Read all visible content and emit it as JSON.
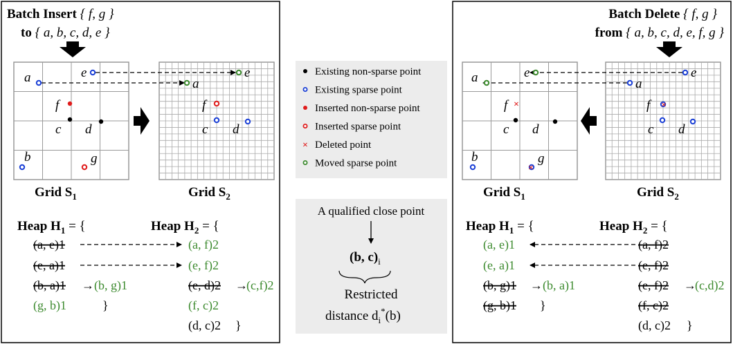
{
  "left_panel": {
    "title_bold": "Batch Insert",
    "title_set": "{ f, g }",
    "subtitle_bold": "to",
    "subtitle_set": "{ a, b, c, d, e }",
    "grid1_label": "Grid S",
    "grid1_sub": "1",
    "grid2_label": "Grid S",
    "grid2_sub": "2",
    "heap1_open": "Heap H",
    "heap1_sub": "1",
    "heap1_eq": "= {",
    "heap2_open": "Heap H",
    "heap2_sub": "2",
    "heap2_eq": "= {",
    "heap1_entries": [
      "(a, e)1",
      "(e, a)1",
      "(b, a)1",
      "(b, g)1",
      "(g, b)1",
      "}"
    ],
    "heap2_entries": [
      "(a, f)2",
      "(e, f)2",
      "(e, d)2",
      "(c,f)2",
      "(f, c)2",
      "(d, c)2",
      "}"
    ],
    "point_labels": [
      "a",
      "e",
      "f",
      "c",
      "d",
      "b",
      "g"
    ]
  },
  "right_panel": {
    "title_bold": "Batch Delete",
    "title_set": "{ f, g }",
    "subtitle_bold": "from",
    "subtitle_set": "{ a, b, c, d, e, f, g }",
    "grid1_label": "Grid S",
    "grid1_sub": "1",
    "grid2_label": "Grid S",
    "grid2_sub": "2",
    "heap1_open": "Heap H",
    "heap1_sub": "1",
    "heap1_eq": "= {",
    "heap2_open": "Heap H",
    "heap2_sub": "2",
    "heap2_eq": "= {",
    "heap1_entries": [
      "(a, e)1",
      "(e, a)1",
      "(b, g)1",
      "(b, a)1",
      "(g, b)1",
      "}"
    ],
    "heap2_entries": [
      "(a, f)2",
      "(e, f)2",
      "(e, f)2",
      "(c,d)2",
      "(f, c)2",
      "(d, c)2",
      "}"
    ]
  },
  "legend": {
    "items": [
      {
        "label": "Existing non-sparse point",
        "marker": "filled-dot",
        "color": "#000000"
      },
      {
        "label": "Existing sparse point",
        "marker": "ring",
        "color": "#1a3fd6"
      },
      {
        "label": "Inserted non-sparse point",
        "marker": "filled-dot",
        "color": "#e01b1b"
      },
      {
        "label": "Inserted sparse point",
        "marker": "ring",
        "color": "#e01b1b"
      },
      {
        "label": "Deleted point",
        "marker": "cross",
        "color": "#e01b1b"
      },
      {
        "label": "Moved sparse point",
        "marker": "ring",
        "color": "#3c8a2e"
      }
    ]
  },
  "explain": {
    "caption": "A qualified close point",
    "pair": "(b, c)",
    "pair_sub": "i",
    "restricted": "Restricted",
    "distance": "distance d",
    "distance_sub": "i",
    "distance_sup": "*",
    "distance_arg": "(b)"
  },
  "colors": {
    "green": "#3c8a2e",
    "blue": "#1a3fd6",
    "red": "#e01b1b",
    "legend_bg": "#ececec"
  }
}
